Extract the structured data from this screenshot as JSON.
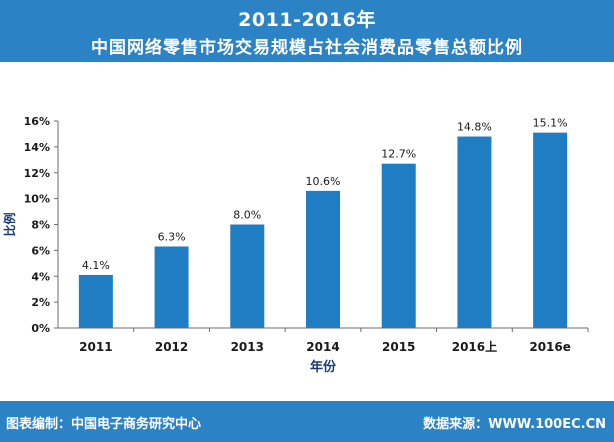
{
  "header": {
    "line1": "2011-2016年",
    "line2": "中国网络零售市场交易规模占社会消费品零售总额比例"
  },
  "footer": {
    "left": "图表编制：中国电子商务研究中心",
    "right": "数据来源：WWW.100EC.CN"
  },
  "chart_data": {
    "type": "bar",
    "categories": [
      "2011",
      "2012",
      "2013",
      "2014",
      "2015",
      "2016上",
      "2016e"
    ],
    "values": [
      4.1,
      6.3,
      8.0,
      10.6,
      12.7,
      14.8,
      15.1
    ],
    "data_labels": [
      "4.1%",
      "6.3%",
      "8.0%",
      "10.6%",
      "12.7%",
      "14.8%",
      "15.1%"
    ],
    "xlabel": "年份",
    "ylabel": "比例",
    "ylim": [
      0,
      16
    ],
    "yticks": [
      0,
      2,
      4,
      6,
      8,
      10,
      12,
      14,
      16
    ],
    "ytick_labels": [
      "0%",
      "2%",
      "4%",
      "6%",
      "8%",
      "10%",
      "12%",
      "14%",
      "16%"
    ],
    "bar_color": "#1f7dc4",
    "grid": false
  }
}
